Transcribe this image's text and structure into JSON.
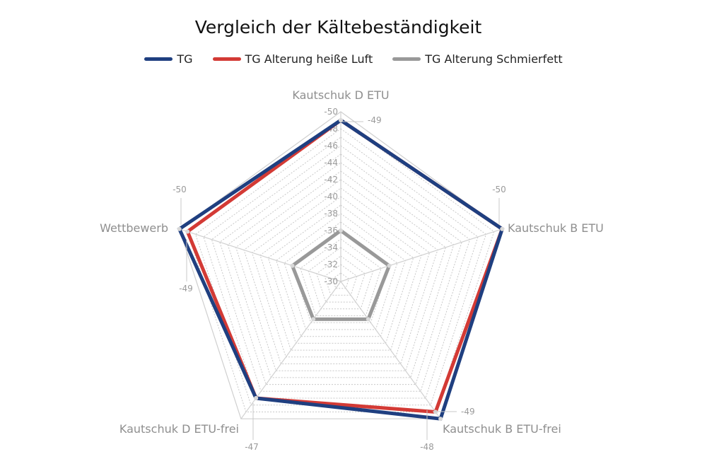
{
  "chart_data": {
    "type": "radar",
    "title": "Vergleich der Kältebeständigkeit",
    "axes": [
      "Kautschuk D ETU",
      "Kautschuk B ETU",
      "Kautschuk B ETU-frei",
      "Kautschuk D ETU-frei",
      "Wettbewerb"
    ],
    "range": [
      -30,
      -50
    ],
    "ticks": [
      "-30",
      "-32",
      "-34",
      "-36",
      "-38",
      "-40",
      "-42",
      "-44",
      "-46",
      "-48",
      "-50"
    ],
    "grid": true,
    "legend_position": "top",
    "series": [
      {
        "name": "TG",
        "color": "#1f3f80",
        "values": [
          -49,
          -50,
          -50,
          -47,
          -50
        ]
      },
      {
        "name": "TG Alterung heiße Luft",
        "color": "#d33a35",
        "values": [
          -49,
          -50,
          -49,
          -47,
          -49
        ]
      },
      {
        "name": "TG Alterung Schmierfett",
        "color": "#999999",
        "values": [
          -36,
          -36,
          -35.5,
          -35.5,
          -36
        ]
      }
    ],
    "data_labels": [
      "-49",
      "-50",
      "-49",
      "-48",
      "-47",
      "-49",
      "-50"
    ]
  }
}
